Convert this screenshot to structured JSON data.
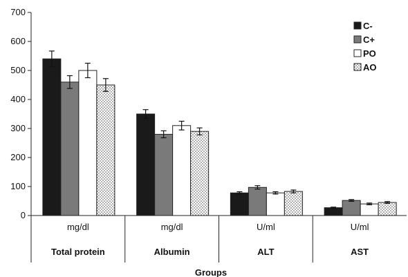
{
  "chart_data": {
    "type": "bar",
    "title": "",
    "xlabel": "Groups",
    "ylabel": "",
    "ylim": [
      0,
      700
    ],
    "yticks": [
      0,
      100,
      200,
      300,
      400,
      500,
      600,
      700
    ],
    "grid": false,
    "legend_position": "top-right",
    "categories": [
      {
        "unit": "mg/dl",
        "name": "Total protein"
      },
      {
        "unit": "mg/dl",
        "name": "Albumin"
      },
      {
        "unit": "U/ml",
        "name": "ALT"
      },
      {
        "unit": "U/ml",
        "name": "AST"
      }
    ],
    "series": [
      {
        "name": "C-",
        "fill": "#1a1a1a",
        "pattern": "solid",
        "values": [
          540,
          350,
          78,
          27
        ],
        "errors": [
          27,
          15,
          4,
          2
        ]
      },
      {
        "name": "C+",
        "fill": "#7a7a7a",
        "pattern": "solid",
        "values": [
          460,
          280,
          97,
          52
        ],
        "errors": [
          22,
          12,
          6,
          3
        ]
      },
      {
        "name": "PO",
        "fill": "#ffffff",
        "pattern": "solid",
        "values": [
          500,
          310,
          78,
          40
        ],
        "errors": [
          25,
          15,
          4,
          3
        ]
      },
      {
        "name": "AO",
        "fill": "#ffffff",
        "pattern": "dotted",
        "values": [
          450,
          290,
          83,
          45
        ],
        "errors": [
          22,
          12,
          5,
          3
        ]
      }
    ]
  }
}
